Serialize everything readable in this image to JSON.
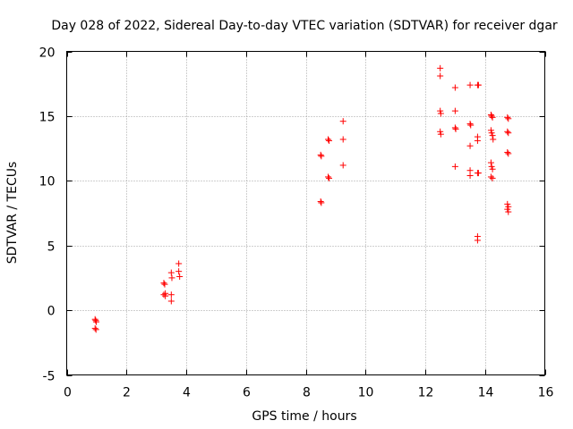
{
  "chart_data": {
    "type": "scatter",
    "title": "Day 028 of 2022, Sidereal Day-to-day VTEC variation (SDTVAR) for receiver dgar",
    "xlabel": "GPS time / hours",
    "ylabel": "SDTVAR / TECUs",
    "xlim": [
      0,
      16
    ],
    "ylim": [
      -5,
      20
    ],
    "xticks": [
      0,
      2,
      4,
      6,
      8,
      10,
      12,
      14,
      16
    ],
    "yticks": [
      -5,
      0,
      5,
      10,
      15,
      20
    ],
    "grid": true,
    "marker": "+",
    "marker_color": "#ff0000",
    "series": [
      {
        "name": "SDTVAR",
        "points": [
          [
            0.95,
            -0.7
          ],
          [
            0.97,
            -0.8
          ],
          [
            0.99,
            -0.9
          ],
          [
            0.95,
            -1.4
          ],
          [
            0.98,
            -1.5
          ],
          [
            3.25,
            2.1
          ],
          [
            3.28,
            2.0
          ],
          [
            3.3,
            1.3
          ],
          [
            3.25,
            1.2
          ],
          [
            3.3,
            1.1
          ],
          [
            3.5,
            2.9
          ],
          [
            3.52,
            2.5
          ],
          [
            3.5,
            1.2
          ],
          [
            3.5,
            0.7
          ],
          [
            3.75,
            3.6
          ],
          [
            3.75,
            3.0
          ],
          [
            3.78,
            2.6
          ],
          [
            8.5,
            12.0
          ],
          [
            8.52,
            11.9
          ],
          [
            8.5,
            8.4
          ],
          [
            8.52,
            8.3
          ],
          [
            8.75,
            13.2
          ],
          [
            8.78,
            13.1
          ],
          [
            8.75,
            10.3
          ],
          [
            8.78,
            10.2
          ],
          [
            9.25,
            14.6
          ],
          [
            9.25,
            13.2
          ],
          [
            9.25,
            11.2
          ],
          [
            12.5,
            18.7
          ],
          [
            12.5,
            18.1
          ],
          [
            12.5,
            15.4
          ],
          [
            12.52,
            15.2
          ],
          [
            12.5,
            13.8
          ],
          [
            12.52,
            13.6
          ],
          [
            13.0,
            17.2
          ],
          [
            13.0,
            15.4
          ],
          [
            13.0,
            14.1
          ],
          [
            13.02,
            14.0
          ],
          [
            13.0,
            11.1
          ],
          [
            13.5,
            17.4
          ],
          [
            13.5,
            14.4
          ],
          [
            13.52,
            14.3
          ],
          [
            13.5,
            12.7
          ],
          [
            13.5,
            10.8
          ],
          [
            13.5,
            10.4
          ],
          [
            13.75,
            17.4
          ],
          [
            13.78,
            17.4
          ],
          [
            13.75,
            13.4
          ],
          [
            13.75,
            13.1
          ],
          [
            13.75,
            10.6
          ],
          [
            13.78,
            10.6
          ],
          [
            13.75,
            5.7
          ],
          [
            13.75,
            5.4
          ],
          [
            14.2,
            15.1
          ],
          [
            14.22,
            15.0
          ],
          [
            14.25,
            14.9
          ],
          [
            14.2,
            13.9
          ],
          [
            14.22,
            13.7
          ],
          [
            14.25,
            13.5
          ],
          [
            14.27,
            13.2
          ],
          [
            14.2,
            11.4
          ],
          [
            14.22,
            11.1
          ],
          [
            14.25,
            10.9
          ],
          [
            14.2,
            10.3
          ],
          [
            14.25,
            10.2
          ],
          [
            14.75,
            14.9
          ],
          [
            14.78,
            14.8
          ],
          [
            14.75,
            13.8
          ],
          [
            14.78,
            13.7
          ],
          [
            14.75,
            12.2
          ],
          [
            14.78,
            12.1
          ],
          [
            14.75,
            8.2
          ],
          [
            14.78,
            8.0
          ],
          [
            14.75,
            7.8
          ],
          [
            14.78,
            7.6
          ]
        ]
      }
    ]
  }
}
